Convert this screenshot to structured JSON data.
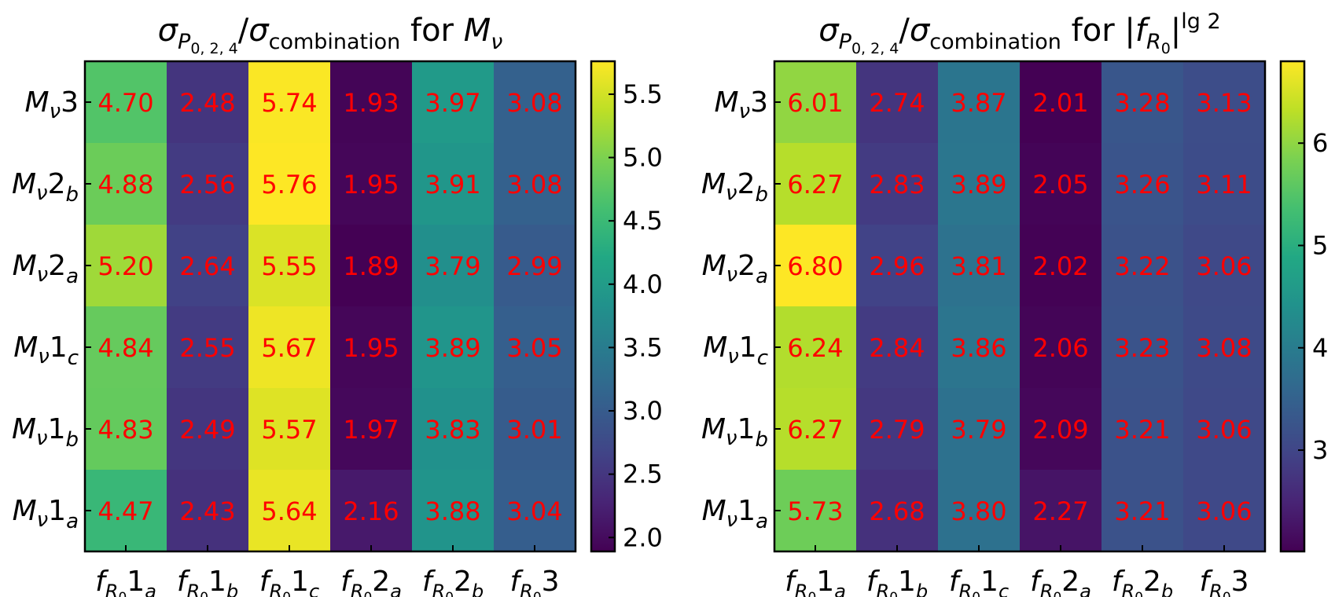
{
  "chart_data": [
    {
      "type": "heatmap",
      "title_parts": {
        "sigma": "σ",
        "sub_p": "P",
        "sub_p_index": "0, 2, 4",
        "slash": "/",
        "sub_comb": "combination",
        "for_text": " for ",
        "target_main": "M",
        "target_sub": "ν",
        "target_sup": "",
        "target_bar": ""
      },
      "title": "σP0,2,4/σcombination for Mν",
      "x_categories": [
        {
          "main": "f",
          "sub": "R",
          "subsub": "0",
          "num": "1",
          "letter": "a"
        },
        {
          "main": "f",
          "sub": "R",
          "subsub": "0",
          "num": "1",
          "letter": "b"
        },
        {
          "main": "f",
          "sub": "R",
          "subsub": "0",
          "num": "1",
          "letter": "c"
        },
        {
          "main": "f",
          "sub": "R",
          "subsub": "0",
          "num": "2",
          "letter": "a"
        },
        {
          "main": "f",
          "sub": "R",
          "subsub": "0",
          "num": "2",
          "letter": "b"
        },
        {
          "main": "f",
          "sub": "R",
          "subsub": "0",
          "num": "3",
          "letter": ""
        }
      ],
      "y_categories": [
        {
          "main": "M",
          "sub": "ν",
          "num": "3",
          "letter": ""
        },
        {
          "main": "M",
          "sub": "ν",
          "num": "2",
          "letter": "b"
        },
        {
          "main": "M",
          "sub": "ν",
          "num": "2",
          "letter": "a"
        },
        {
          "main": "M",
          "sub": "ν",
          "num": "1",
          "letter": "c"
        },
        {
          "main": "M",
          "sub": "ν",
          "num": "1",
          "letter": "b"
        },
        {
          "main": "M",
          "sub": "ν",
          "num": "1",
          "letter": "a"
        }
      ],
      "values": [
        [
          4.7,
          2.48,
          5.74,
          1.93,
          3.97,
          3.08
        ],
        [
          4.88,
          2.56,
          5.76,
          1.95,
          3.91,
          3.08
        ],
        [
          5.2,
          2.64,
          5.55,
          1.89,
          3.79,
          2.99
        ],
        [
          4.84,
          2.55,
          5.67,
          1.95,
          3.89,
          3.05
        ],
        [
          4.83,
          2.49,
          5.57,
          1.97,
          3.83,
          3.01
        ],
        [
          4.47,
          2.43,
          5.64,
          2.16,
          3.88,
          3.04
        ]
      ],
      "value_labels": [
        [
          "4.70",
          "2.48",
          "5.74",
          "1.93",
          "3.97",
          "3.08"
        ],
        [
          "4.88",
          "2.56",
          "5.76",
          "1.95",
          "3.91",
          "3.08"
        ],
        [
          "5.20",
          "2.64",
          "5.55",
          "1.89",
          "3.79",
          "2.99"
        ],
        [
          "4.84",
          "2.55",
          "5.67",
          "1.95",
          "3.89",
          "3.05"
        ],
        [
          "4.83",
          "2.49",
          "5.57",
          "1.97",
          "3.83",
          "3.01"
        ],
        [
          "4.47",
          "2.43",
          "5.64",
          "2.16",
          "3.88",
          "3.04"
        ]
      ],
      "colormap": "viridis",
      "color_range": [
        1.89,
        5.76
      ],
      "colorbar_ticks": [
        2.0,
        2.5,
        3.0,
        3.5,
        4.0,
        4.5,
        5.0,
        5.5
      ],
      "colorbar_tick_labels": [
        "2.0",
        "2.5",
        "3.0",
        "3.5",
        "4.0",
        "4.5",
        "5.0",
        "5.5"
      ],
      "cell_label_color": "#ff0000"
    },
    {
      "type": "heatmap",
      "title_parts": {
        "sigma": "σ",
        "sub_p": "P",
        "sub_p_index": "0, 2, 4",
        "slash": "/",
        "sub_comb": "combination",
        "for_text": " for ",
        "target_main": "f",
        "target_sub": "R",
        "target_subsub": "0",
        "target_sup": "lg 2",
        "target_bar": "|"
      },
      "title": "σP0,2,4/σcombination for |fR0|lg 2",
      "x_categories": [
        {
          "main": "f",
          "sub": "R",
          "subsub": "0",
          "num": "1",
          "letter": "a"
        },
        {
          "main": "f",
          "sub": "R",
          "subsub": "0",
          "num": "1",
          "letter": "b"
        },
        {
          "main": "f",
          "sub": "R",
          "subsub": "0",
          "num": "1",
          "letter": "c"
        },
        {
          "main": "f",
          "sub": "R",
          "subsub": "0",
          "num": "2",
          "letter": "a"
        },
        {
          "main": "f",
          "sub": "R",
          "subsub": "0",
          "num": "2",
          "letter": "b"
        },
        {
          "main": "f",
          "sub": "R",
          "subsub": "0",
          "num": "3",
          "letter": ""
        }
      ],
      "y_categories": [
        {
          "main": "M",
          "sub": "ν",
          "num": "3",
          "letter": ""
        },
        {
          "main": "M",
          "sub": "ν",
          "num": "2",
          "letter": "b"
        },
        {
          "main": "M",
          "sub": "ν",
          "num": "2",
          "letter": "a"
        },
        {
          "main": "M",
          "sub": "ν",
          "num": "1",
          "letter": "c"
        },
        {
          "main": "M",
          "sub": "ν",
          "num": "1",
          "letter": "b"
        },
        {
          "main": "M",
          "sub": "ν",
          "num": "1",
          "letter": "a"
        }
      ],
      "values": [
        [
          6.01,
          2.74,
          3.87,
          2.01,
          3.28,
          3.13
        ],
        [
          6.27,
          2.83,
          3.89,
          2.05,
          3.26,
          3.11
        ],
        [
          6.8,
          2.96,
          3.81,
          2.02,
          3.22,
          3.06
        ],
        [
          6.24,
          2.84,
          3.86,
          2.06,
          3.23,
          3.08
        ],
        [
          6.27,
          2.79,
          3.79,
          2.09,
          3.21,
          3.06
        ],
        [
          5.73,
          2.68,
          3.8,
          2.27,
          3.21,
          3.06
        ]
      ],
      "value_labels": [
        [
          "6.01",
          "2.74",
          "3.87",
          "2.01",
          "3.28",
          "3.13"
        ],
        [
          "6.27",
          "2.83",
          "3.89",
          "2.05",
          "3.26",
          "3.11"
        ],
        [
          "6.80",
          "2.96",
          "3.81",
          "2.02",
          "3.22",
          "3.06"
        ],
        [
          "6.24",
          "2.84",
          "3.86",
          "2.06",
          "3.23",
          "3.08"
        ],
        [
          "6.27",
          "2.79",
          "3.79",
          "2.09",
          "3.21",
          "3.06"
        ],
        [
          "5.73",
          "2.68",
          "3.80",
          "2.27",
          "3.21",
          "3.06"
        ]
      ],
      "colormap": "viridis",
      "color_range": [
        2.01,
        6.8
      ],
      "colorbar_ticks": [
        3,
        4,
        5,
        6
      ],
      "colorbar_tick_labels": [
        "3",
        "4",
        "5",
        "6"
      ],
      "cell_label_color": "#ff0000"
    }
  ]
}
